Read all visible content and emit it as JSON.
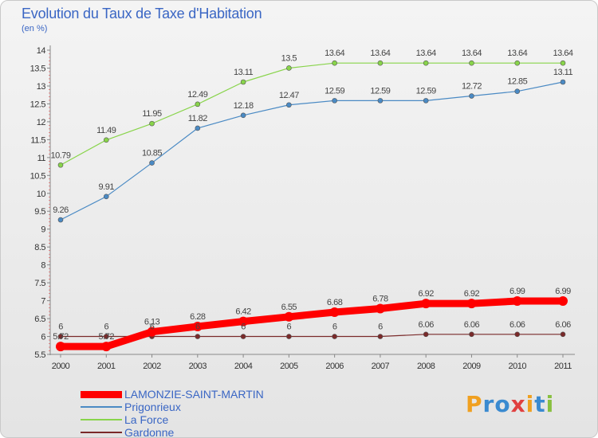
{
  "chart_data": {
    "type": "line",
    "title": "Evolution du Taux de Taxe d'Habitation",
    "subtitle": "(en %)",
    "x": [
      2000,
      2001,
      2002,
      2003,
      2004,
      2005,
      2006,
      2007,
      2008,
      2009,
      2010,
      2011
    ],
    "ylim": [
      5.5,
      14
    ],
    "yticks": [
      "5.5",
      "6",
      "6.5",
      "7",
      "7.5",
      "8",
      "8.5",
      "9",
      "9.5",
      "10",
      "10.5",
      "11",
      "11.5",
      "12",
      "12.5",
      "13",
      "13.5",
      "14"
    ],
    "grid": false,
    "legend_position": "bottom-left",
    "series": [
      {
        "name": "LAMONZIE-SAINT-MARTIN",
        "color": "#ff0000",
        "values": [
          5.72,
          5.72,
          6.13,
          6.28,
          6.42,
          6.55,
          6.68,
          6.78,
          6.92,
          6.92,
          6.99,
          6.99
        ],
        "labels": [
          "5.72",
          "5.72",
          "6.13",
          "6.28",
          "6.42",
          "6.55",
          "6.68",
          "6.78",
          "6.92",
          "6.92",
          "6.99",
          "6.99"
        ]
      },
      {
        "name": "Prigonrieux",
        "color": "#4a8ac4",
        "values": [
          9.26,
          9.91,
          10.85,
          11.82,
          12.18,
          12.47,
          12.59,
          12.59,
          12.59,
          12.72,
          12.85,
          13.11
        ],
        "labels": [
          "9.26",
          "9.91",
          "10.85",
          "11.82",
          "12.18",
          "12.47",
          "12.59",
          "12.59",
          "12.59",
          "12.72",
          "12.85",
          "13.11"
        ]
      },
      {
        "name": "La Force",
        "color": "#88d44a",
        "values": [
          10.79,
          11.49,
          11.95,
          12.49,
          13.11,
          13.5,
          13.64,
          13.64,
          13.64,
          13.64,
          13.64,
          13.64
        ],
        "labels": [
          "10.79",
          "11.49",
          "11.95",
          "12.49",
          "13.11",
          "13.5",
          "13.64",
          "13.64",
          "13.64",
          "13.64",
          "13.64",
          "13.64"
        ]
      },
      {
        "name": "Gardonne",
        "color": "#7a2a2a",
        "values": [
          6,
          6,
          6,
          6,
          6,
          6,
          6,
          6,
          6.06,
          6.06,
          6.06,
          6.06
        ],
        "labels": [
          "6",
          "6",
          "6",
          "6",
          "6",
          "6",
          "6",
          "6",
          "6.06",
          "6.06",
          "6.06",
          "6.06"
        ]
      }
    ],
    "logo": {
      "text": "Proxiti",
      "letters": [
        "P",
        "r",
        "o",
        "x",
        "i",
        "t",
        "i"
      ],
      "colors": [
        "#f0a020",
        "#3a8ad0",
        "#3a8ad0",
        "#e04040",
        "#f0a020",
        "#3a8ad0",
        "#88c040"
      ]
    }
  }
}
